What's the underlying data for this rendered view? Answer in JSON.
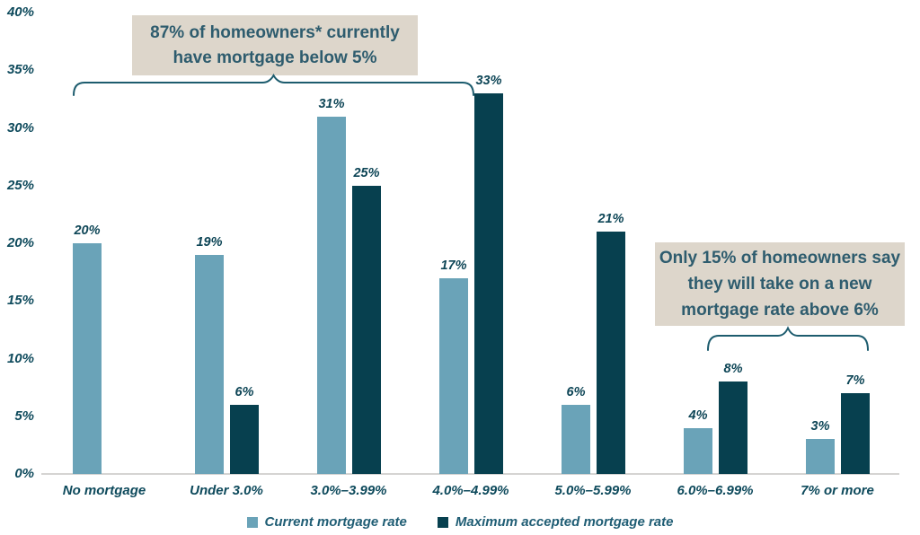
{
  "chart_data": {
    "type": "bar",
    "title": "",
    "categories": [
      "No mortgage",
      "Under 3.0%",
      "3.0%–3.99%",
      "4.0%–4.99%",
      "5.0%–5.99%",
      "6.0%–6.99%",
      "7% or more"
    ],
    "series": [
      {
        "name": "Current mortgage rate",
        "color": "#6AA3B8",
        "values": [
          20,
          19,
          31,
          17,
          6,
          4,
          3
        ]
      },
      {
        "name": "Maximum accepted mortgage rate",
        "color": "#07404F",
        "values": [
          null,
          6,
          25,
          33,
          21,
          8,
          7
        ]
      }
    ],
    "y_axis": {
      "min": 0,
      "max": 40,
      "step": 5,
      "unit": "%",
      "tick_labels": [
        "0%",
        "5%",
        "10%",
        "15%",
        "20%",
        "25%",
        "30%",
        "35%",
        "40%"
      ]
    },
    "data_label_format": "{value}%",
    "grid": false,
    "legend_position": "bottom",
    "annotations": [
      {
        "id": "below-5",
        "lines": [
          "87% of homeowners* currently",
          "have mortgage below 5%"
        ],
        "full_text": "87% of homeowners* currently have mortgage below 5%",
        "bracket_span_categories": [
          "No mortgage",
          "4.0%–4.99%"
        ]
      },
      {
        "id": "above-6",
        "lines": [
          "Only 15% of homeowners say",
          "they will take on a new",
          "mortgage rate above 6%"
        ],
        "full_text": "Only 15% of homeowners say they will take on a new mortgage rate above 6%",
        "bracket_span_categories": [
          "6.0%–6.99%",
          "7% or more"
        ]
      }
    ]
  },
  "colors": {
    "bar_current": "#6AA3B8",
    "bar_maximum": "#07404F",
    "axis_label": "#0E4A5C",
    "data_label": "#0D4556",
    "annotation_bg": "#DDD6CB",
    "annotation_text": "#2E5C6E",
    "bracket": "#1D5C6E",
    "axis_line": "#D5D4D2",
    "background": "#FFFFFF"
  }
}
